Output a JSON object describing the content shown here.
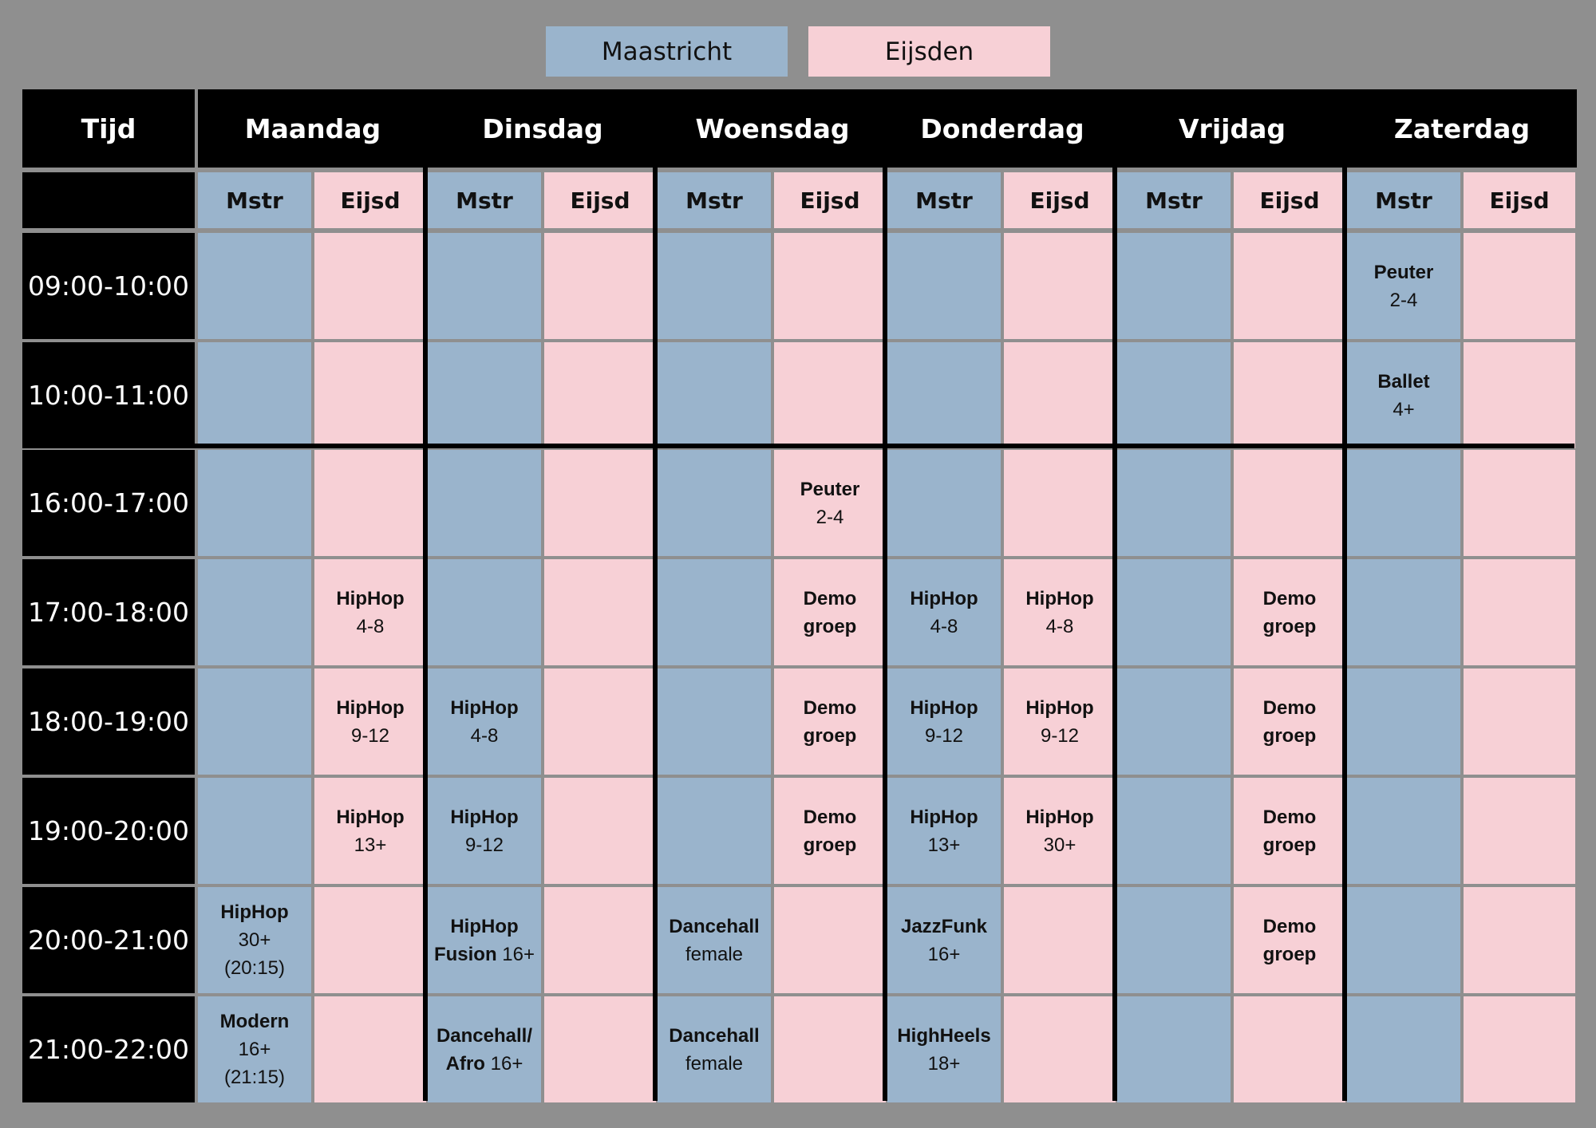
{
  "legend": {
    "maastricht": "Maastricht",
    "eijsden": "Eijsden"
  },
  "header": {
    "time": "Tijd",
    "mstr": "Mstr",
    "eijsd": "Eijsd"
  },
  "days": [
    "Maandag",
    "Dinsdag",
    "Woensdag",
    "Donderdag",
    "Vrijdag",
    "Zaterdag"
  ],
  "times": [
    "09:00-10:00",
    "10:00-11:00",
    "16:00-17:00",
    "17:00-18:00",
    "18:00-19:00",
    "19:00-20:00",
    "20:00-21:00",
    "21:00-22:00"
  ],
  "colors": {
    "maastricht": "#9ab4cc",
    "eijsden": "#f7d0d6",
    "background": "#8f8f8f",
    "header": "#000000"
  },
  "cells": [
    {
      "row": 0,
      "day": 5,
      "loc": "m",
      "lines": [
        [
          "Peuter",
          "bold"
        ],
        [
          "2-4",
          "normal"
        ]
      ]
    },
    {
      "row": 1,
      "day": 5,
      "loc": "m",
      "lines": [
        [
          "Ballet",
          "bold"
        ],
        [
          "4+",
          "normal"
        ]
      ]
    },
    {
      "row": 2,
      "day": 2,
      "loc": "e",
      "lines": [
        [
          "Peuter",
          "bold"
        ],
        [
          "2-4",
          "normal"
        ]
      ]
    },
    {
      "row": 3,
      "day": 0,
      "loc": "e",
      "lines": [
        [
          "HipHop",
          "bold"
        ],
        [
          "4-8",
          "normal"
        ]
      ]
    },
    {
      "row": 3,
      "day": 2,
      "loc": "e",
      "lines": [
        [
          "Demo",
          "bold"
        ],
        [
          "groep",
          "bold"
        ]
      ]
    },
    {
      "row": 3,
      "day": 3,
      "loc": "m",
      "lines": [
        [
          "HipHop",
          "bold"
        ],
        [
          "4-8",
          "normal"
        ]
      ]
    },
    {
      "row": 3,
      "day": 3,
      "loc": "e",
      "lines": [
        [
          "HipHop",
          "bold"
        ],
        [
          "4-8",
          "normal"
        ]
      ]
    },
    {
      "row": 3,
      "day": 4,
      "loc": "e",
      "lines": [
        [
          "Demo",
          "bold"
        ],
        [
          "groep",
          "bold"
        ]
      ]
    },
    {
      "row": 4,
      "day": 0,
      "loc": "e",
      "lines": [
        [
          "HipHop",
          "bold"
        ],
        [
          "9-12",
          "normal"
        ]
      ]
    },
    {
      "row": 4,
      "day": 1,
      "loc": "m",
      "lines": [
        [
          "HipHop",
          "bold"
        ],
        [
          "4-8",
          "normal"
        ]
      ]
    },
    {
      "row": 4,
      "day": 2,
      "loc": "e",
      "lines": [
        [
          "Demo",
          "bold"
        ],
        [
          "groep",
          "bold"
        ]
      ]
    },
    {
      "row": 4,
      "day": 3,
      "loc": "m",
      "lines": [
        [
          "HipHop",
          "bold"
        ],
        [
          "9-12",
          "normal"
        ]
      ]
    },
    {
      "row": 4,
      "day": 3,
      "loc": "e",
      "lines": [
        [
          "HipHop",
          "bold"
        ],
        [
          "9-12",
          "normal"
        ]
      ]
    },
    {
      "row": 4,
      "day": 4,
      "loc": "e",
      "lines": [
        [
          "Demo",
          "bold"
        ],
        [
          "groep",
          "bold"
        ]
      ]
    },
    {
      "row": 5,
      "day": 0,
      "loc": "e",
      "lines": [
        [
          "HipHop",
          "bold"
        ],
        [
          "13+",
          "normal"
        ]
      ]
    },
    {
      "row": 5,
      "day": 1,
      "loc": "m",
      "lines": [
        [
          "HipHop",
          "bold"
        ],
        [
          "9-12",
          "normal"
        ]
      ]
    },
    {
      "row": 5,
      "day": 2,
      "loc": "e",
      "lines": [
        [
          "Demo",
          "bold"
        ],
        [
          "groep",
          "bold"
        ]
      ]
    },
    {
      "row": 5,
      "day": 3,
      "loc": "m",
      "lines": [
        [
          "HipHop",
          "bold"
        ],
        [
          "13+",
          "normal"
        ]
      ]
    },
    {
      "row": 5,
      "day": 3,
      "loc": "e",
      "lines": [
        [
          "HipHop",
          "bold"
        ],
        [
          "30+",
          "normal"
        ]
      ]
    },
    {
      "row": 5,
      "day": 4,
      "loc": "e",
      "lines": [
        [
          "Demo",
          "bold"
        ],
        [
          "groep",
          "bold"
        ]
      ]
    },
    {
      "row": 6,
      "day": 0,
      "loc": "m",
      "lines": [
        [
          "HipHop",
          "bold"
        ],
        [
          "30+",
          "normal"
        ],
        [
          "(20:15)",
          "normal"
        ]
      ]
    },
    {
      "row": 6,
      "day": 1,
      "loc": "m",
      "lines": [
        [
          "HipHop",
          "bold"
        ],
        [
          "Fusion",
          "bold",
          " 16+"
        ]
      ]
    },
    {
      "row": 6,
      "day": 2,
      "loc": "m",
      "lines": [
        [
          "Dancehall",
          "bold"
        ],
        [
          "female",
          "normal"
        ]
      ]
    },
    {
      "row": 6,
      "day": 3,
      "loc": "m",
      "lines": [
        [
          "JazzFunk",
          "bold"
        ],
        [
          "16+",
          "normal"
        ]
      ]
    },
    {
      "row": 6,
      "day": 4,
      "loc": "e",
      "lines": [
        [
          "Demo",
          "bold"
        ],
        [
          "groep",
          "bold"
        ]
      ]
    },
    {
      "row": 7,
      "day": 0,
      "loc": "m",
      "lines": [
        [
          "Modern",
          "bold"
        ],
        [
          "16+",
          "normal"
        ],
        [
          "(21:15)",
          "normal"
        ]
      ]
    },
    {
      "row": 7,
      "day": 1,
      "loc": "m",
      "lines": [
        [
          "Dancehall/",
          "bold"
        ],
        [
          "Afro",
          "bold",
          " 16+"
        ]
      ]
    },
    {
      "row": 7,
      "day": 2,
      "loc": "m",
      "lines": [
        [
          "Dancehall",
          "bold"
        ],
        [
          "female",
          "normal"
        ]
      ]
    },
    {
      "row": 7,
      "day": 3,
      "loc": "m",
      "lines": [
        [
          "HighHeels",
          "bold"
        ],
        [
          "18+",
          "normal"
        ]
      ]
    }
  ]
}
